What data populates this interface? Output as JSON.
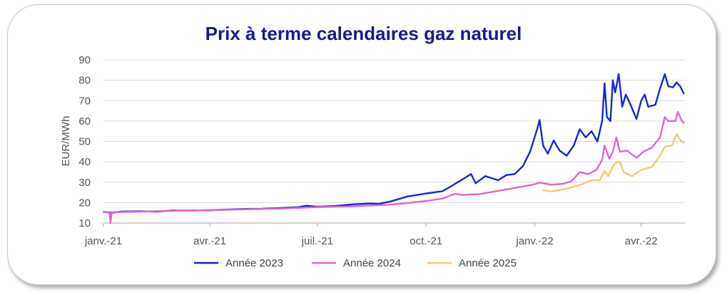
{
  "chart_data": {
    "type": "line",
    "title": "Prix à terme calendaires gaz naturel",
    "ylabel": "EUR/MWh",
    "xlabel": "",
    "ylim": [
      10,
      90
    ],
    "yticks": [
      "10",
      "20",
      "30",
      "40",
      "50",
      "60",
      "70",
      "80",
      "90"
    ],
    "xtick_labels": [
      "janv.-21",
      "avr.-21",
      "juil.-21",
      "oct.-21",
      "janv.-22",
      "avr.-22"
    ],
    "xtick_dates": [
      "2021-01-01",
      "2021-04-01",
      "2021-07-01",
      "2021-10-01",
      "2022-01-01",
      "2022-04-01"
    ],
    "grid": "horizontal",
    "legend_position": "bottom",
    "series": [
      {
        "name": "Année 2023",
        "color": "#1428d2",
        "points": [
          [
            "2021-01-01",
            15.5
          ],
          [
            "2021-01-08",
            15.0
          ],
          [
            "2021-01-15",
            15.6
          ],
          [
            "2021-02-01",
            15.8
          ],
          [
            "2021-02-15",
            15.6
          ],
          [
            "2021-03-01",
            16.2
          ],
          [
            "2021-03-15",
            16.1
          ],
          [
            "2021-04-01",
            16.3
          ],
          [
            "2021-04-15",
            16.6
          ],
          [
            "2021-05-01",
            16.9
          ],
          [
            "2021-05-15",
            17.0
          ],
          [
            "2021-06-01",
            17.4
          ],
          [
            "2021-06-15",
            17.8
          ],
          [
            "2021-06-22",
            18.5
          ],
          [
            "2021-07-01",
            18.0
          ],
          [
            "2021-07-15",
            18.3
          ],
          [
            "2021-08-01",
            19.2
          ],
          [
            "2021-08-15",
            19.6
          ],
          [
            "2021-08-22",
            19.4
          ],
          [
            "2021-09-01",
            20.6
          ],
          [
            "2021-09-15",
            23.0
          ],
          [
            "2021-10-01",
            24.5
          ],
          [
            "2021-10-15",
            25.6
          ],
          [
            "2021-10-22",
            28.0
          ],
          [
            "2021-11-01",
            31.5
          ],
          [
            "2021-11-08",
            34.0
          ],
          [
            "2021-11-12",
            29.5
          ],
          [
            "2021-11-20",
            33.0
          ],
          [
            "2021-12-01",
            31.0
          ],
          [
            "2021-12-08",
            33.5
          ],
          [
            "2021-12-15",
            34.0
          ],
          [
            "2021-12-22",
            38.0
          ],
          [
            "2021-12-28",
            45.0
          ],
          [
            "2022-01-03",
            56.0
          ],
          [
            "2022-01-05",
            60.5
          ],
          [
            "2022-01-08",
            48.0
          ],
          [
            "2022-01-12",
            44.0
          ],
          [
            "2022-01-17",
            50.5
          ],
          [
            "2022-01-22",
            45.5
          ],
          [
            "2022-01-28",
            43.0
          ],
          [
            "2022-02-03",
            48.0
          ],
          [
            "2022-02-08",
            56.0
          ],
          [
            "2022-02-13",
            52.0
          ],
          [
            "2022-02-18",
            55.0
          ],
          [
            "2022-02-23",
            50.0
          ],
          [
            "2022-02-27",
            60.0
          ],
          [
            "2022-03-01",
            78.5
          ],
          [
            "2022-03-03",
            62.0
          ],
          [
            "2022-03-06",
            60.0
          ],
          [
            "2022-03-08",
            80.0
          ],
          [
            "2022-03-10",
            74.0
          ],
          [
            "2022-03-13",
            83.0
          ],
          [
            "2022-03-16",
            67.0
          ],
          [
            "2022-03-19",
            73.0
          ],
          [
            "2022-03-23",
            68.0
          ],
          [
            "2022-03-28",
            61.0
          ],
          [
            "2022-04-01",
            70.0
          ],
          [
            "2022-04-04",
            73.0
          ],
          [
            "2022-04-07",
            67.0
          ],
          [
            "2022-04-13",
            68.0
          ],
          [
            "2022-04-17",
            76.0
          ],
          [
            "2022-04-21",
            83.0
          ],
          [
            "2022-04-24",
            77.0
          ],
          [
            "2022-04-28",
            76.5
          ],
          [
            "2022-05-01",
            79.0
          ],
          [
            "2022-05-04",
            77.0
          ],
          [
            "2022-05-07",
            73.5
          ]
        ]
      },
      {
        "name": "Année 2024",
        "color": "#e066c8",
        "points": [
          [
            "2021-01-01",
            15.5
          ],
          [
            "2021-01-06",
            15.3
          ],
          [
            "2021-01-07",
            10.0
          ],
          [
            "2021-01-08",
            15.3
          ],
          [
            "2021-02-01",
            15.6
          ],
          [
            "2021-03-01",
            16.0
          ],
          [
            "2021-04-01",
            16.3
          ],
          [
            "2021-05-01",
            16.7
          ],
          [
            "2021-06-01",
            17.1
          ],
          [
            "2021-07-01",
            17.8
          ],
          [
            "2021-08-01",
            18.2
          ],
          [
            "2021-09-01",
            19.0
          ],
          [
            "2021-09-15",
            19.8
          ],
          [
            "2021-10-01",
            20.8
          ],
          [
            "2021-10-15",
            22.0
          ],
          [
            "2021-10-25",
            24.3
          ],
          [
            "2021-11-01",
            23.8
          ],
          [
            "2021-11-15",
            24.2
          ],
          [
            "2021-12-01",
            25.8
          ],
          [
            "2021-12-15",
            27.2
          ],
          [
            "2022-01-01",
            29.0
          ],
          [
            "2022-01-05",
            29.8
          ],
          [
            "2022-01-15",
            28.8
          ],
          [
            "2022-01-25",
            29.2
          ],
          [
            "2022-02-01",
            30.5
          ],
          [
            "2022-02-08",
            35.0
          ],
          [
            "2022-02-15",
            34.0
          ],
          [
            "2022-02-22",
            36.0
          ],
          [
            "2022-02-27",
            41.0
          ],
          [
            "2022-03-01",
            48.0
          ],
          [
            "2022-03-05",
            41.5
          ],
          [
            "2022-03-08",
            45.0
          ],
          [
            "2022-03-11",
            52.0
          ],
          [
            "2022-03-14",
            45.0
          ],
          [
            "2022-03-20",
            45.5
          ],
          [
            "2022-03-28",
            42.0
          ],
          [
            "2022-04-03",
            45.0
          ],
          [
            "2022-04-10",
            47.0
          ],
          [
            "2022-04-17",
            52.0
          ],
          [
            "2022-04-21",
            62.0
          ],
          [
            "2022-04-24",
            60.0
          ],
          [
            "2022-04-30",
            60.0
          ],
          [
            "2022-05-02",
            64.5
          ],
          [
            "2022-05-05",
            60.5
          ],
          [
            "2022-05-07",
            59.0
          ]
        ]
      },
      {
        "name": "Année 2025",
        "color": "#f8c47a",
        "points": [
          [
            "2022-01-08",
            26.0
          ],
          [
            "2022-01-15",
            25.5
          ],
          [
            "2022-01-25",
            26.5
          ],
          [
            "2022-02-01",
            27.5
          ],
          [
            "2022-02-10",
            29.0
          ],
          [
            "2022-02-18",
            31.0
          ],
          [
            "2022-02-25",
            31.0
          ],
          [
            "2022-03-01",
            35.5
          ],
          [
            "2022-03-04",
            33.0
          ],
          [
            "2022-03-07",
            36.5
          ],
          [
            "2022-03-10",
            39.5
          ],
          [
            "2022-03-14",
            40.0
          ],
          [
            "2022-03-17",
            35.0
          ],
          [
            "2022-03-24",
            33.0
          ],
          [
            "2022-04-01",
            36.0
          ],
          [
            "2022-04-10",
            37.5
          ],
          [
            "2022-04-17",
            43.0
          ],
          [
            "2022-04-21",
            47.5
          ],
          [
            "2022-04-27",
            48.0
          ],
          [
            "2022-05-01",
            53.5
          ],
          [
            "2022-05-05",
            50.0
          ],
          [
            "2022-05-07",
            49.5
          ]
        ]
      }
    ]
  }
}
